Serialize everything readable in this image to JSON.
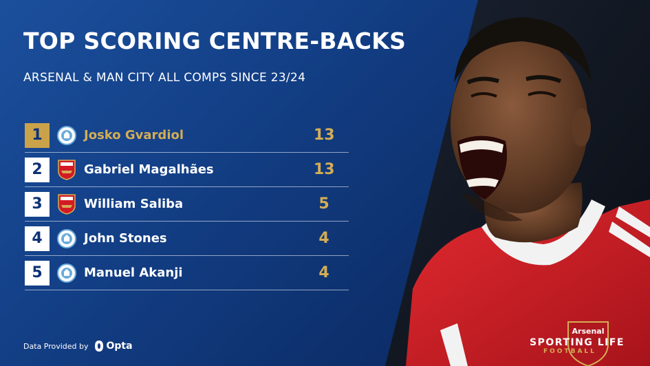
{
  "header": {
    "title": "TOP SCORING CENTRE-BACKS",
    "subtitle": "ARSENAL & MAN CITY ALL COMPS SINCE 23/24"
  },
  "table": {
    "rows": [
      {
        "rank": "1",
        "club": "man-city",
        "name": "Josko Gvardiol",
        "goals": "13"
      },
      {
        "rank": "2",
        "club": "arsenal",
        "name": "Gabriel Magalhães",
        "goals": "13"
      },
      {
        "rank": "3",
        "club": "arsenal",
        "name": "William Saliba",
        "goals": "5"
      },
      {
        "rank": "4",
        "club": "man-city",
        "name": "John Stones",
        "goals": "4"
      },
      {
        "rank": "5",
        "club": "man-city",
        "name": "Manuel Akanji",
        "goals": "4"
      }
    ]
  },
  "footer": {
    "provided_by": "Data Provided by",
    "provider": "Opta",
    "brand_main": "SPORTING LIFE",
    "brand_sub": "FOOTBALL"
  },
  "photo": {
    "shirt_crest_text": "Arsenal"
  },
  "colors": {
    "background": "#133f86",
    "gold": "#d4ad55",
    "rank_gold": "#c9a24a",
    "arsenal_red": "#d41a24",
    "city_blue": "#6cabdd"
  }
}
